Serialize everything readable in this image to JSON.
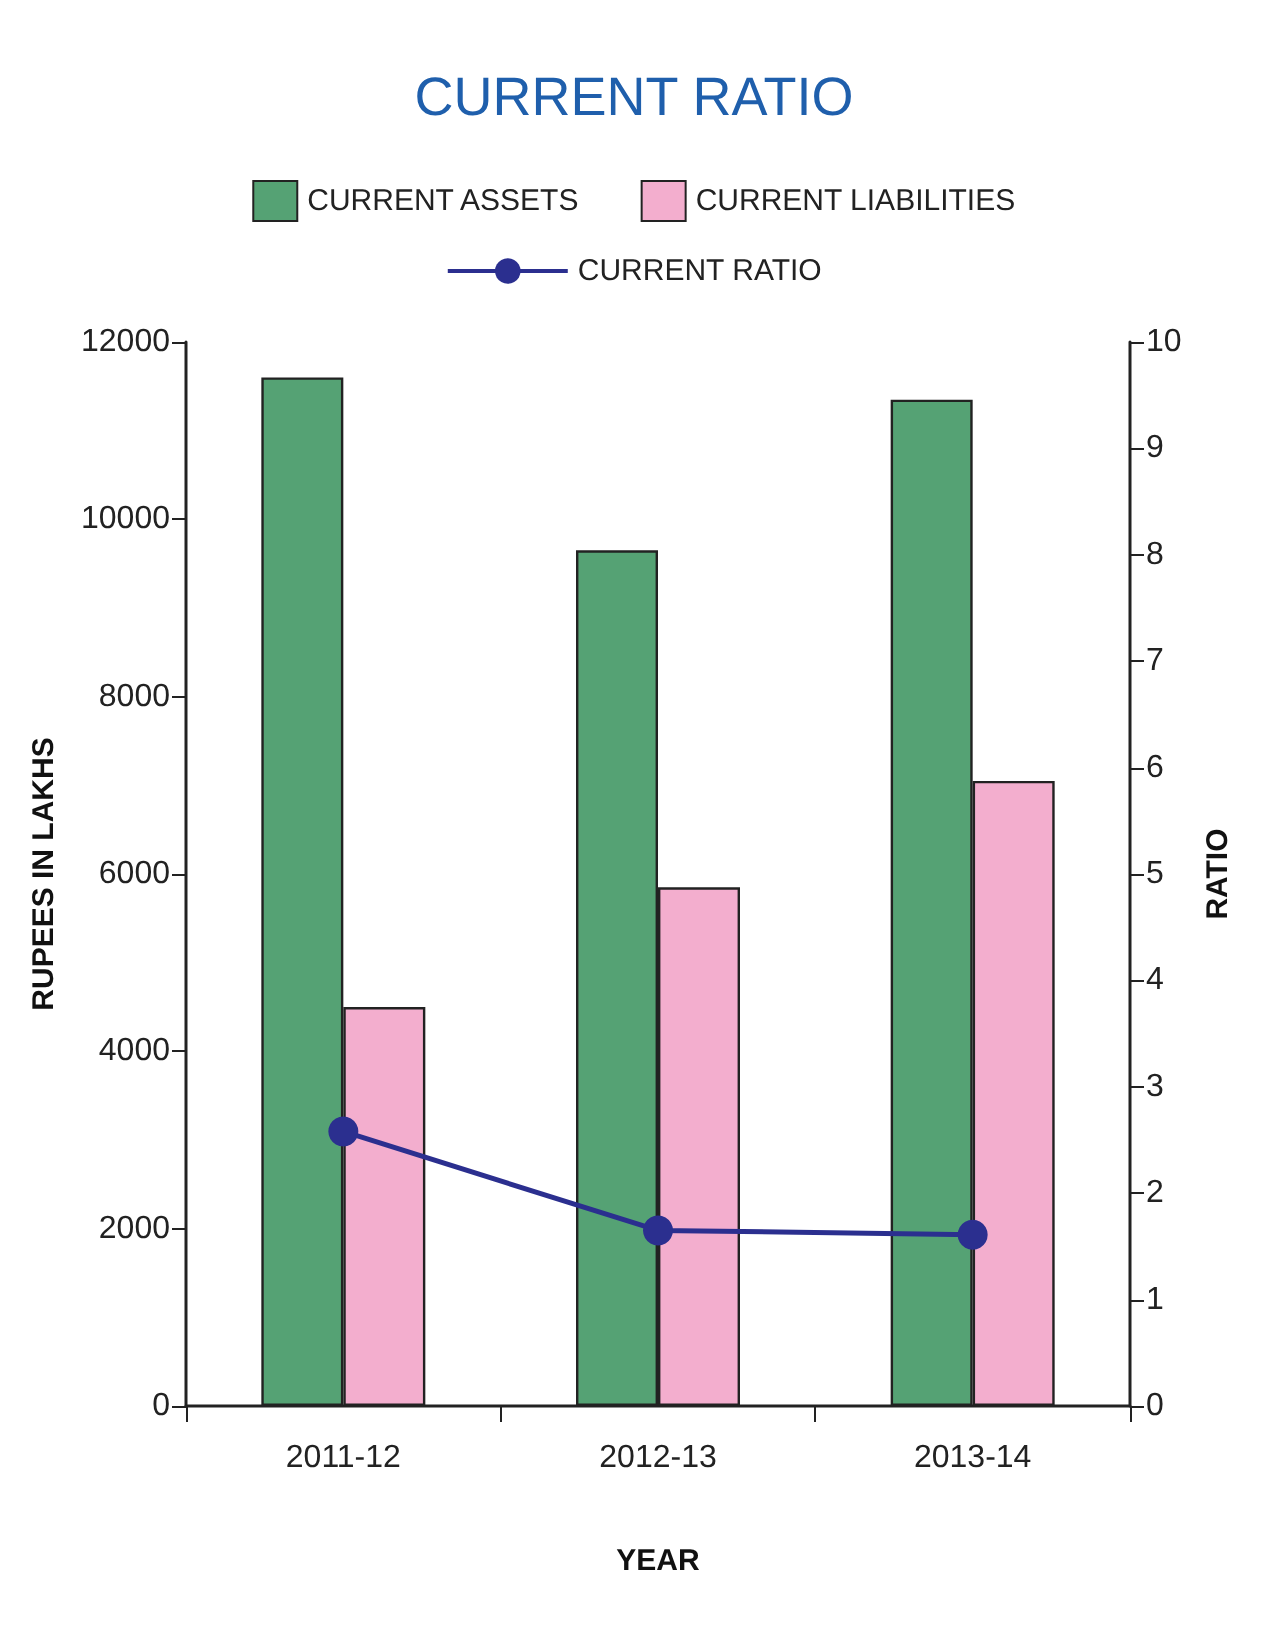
{
  "chart_data": {
    "type": "bar",
    "title": "CURRENT RATIO",
    "xlabel": "YEAR",
    "ylabel": "RUPEES IN LAKHS",
    "y2label": "RATIO",
    "categories": [
      "2011-12",
      "2012-13",
      "2013-14"
    ],
    "series": [
      {
        "name": "CURRENT ASSETS",
        "color": "#55a274",
        "values": [
          11600,
          9650,
          11350
        ]
      },
      {
        "name": "CURRENT LIABILITIES",
        "color": "#f3aece",
        "values": [
          4500,
          5850,
          7050
        ]
      },
      {
        "name": "CURRENT RATIO",
        "type": "line",
        "axis": "y2",
        "color": "#2b2f8f",
        "values": [
          2.58,
          1.65,
          1.61
        ]
      }
    ],
    "ylim": [
      0,
      12000
    ],
    "yticks": [
      0,
      2000,
      4000,
      6000,
      8000,
      10000,
      12000
    ],
    "y2lim": [
      0,
      10
    ],
    "y2ticks": [
      0,
      1,
      2,
      3,
      4,
      5,
      6,
      7,
      8,
      9,
      10
    ],
    "grid": false,
    "legend": "top",
    "marker": "circle",
    "line_style": "solid"
  }
}
